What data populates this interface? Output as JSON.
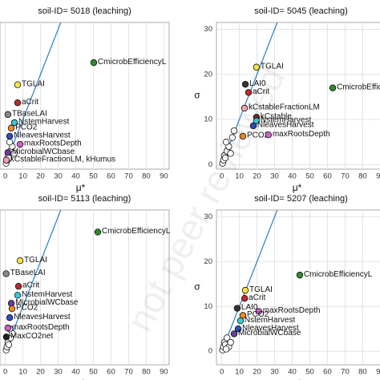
{
  "watermark": "not peer reviewed",
  "chart_data": [
    {
      "type": "scatter",
      "title": "soil-ID= 5018  (leaching)",
      "xlabel": "μ*",
      "xlim": [
        -3,
        93
      ],
      "ylim": [
        -1,
        31.5
      ],
      "xticks": [
        0,
        10,
        20,
        30,
        40,
        50,
        60,
        70,
        80,
        90
      ],
      "grid": true,
      "series": [
        {
          "color": "#ffffff",
          "x": [
            0.5,
            1,
            1.5,
            2,
            3,
            4,
            5,
            2.5
          ],
          "values": [
            0.3,
            1,
            2,
            1.5,
            3,
            4,
            2.5,
            5
          ]
        },
        {
          "name": "CmicrobEfficiencyL",
          "color": "#2e8b2e",
          "x": [
            50.2
          ],
          "values": [
            22.6
          ]
        },
        {
          "name": "TGLAI",
          "color": "#f5e642",
          "x": [
            7
          ],
          "values": [
            17.7
          ]
        },
        {
          "name": "aCrit",
          "color": "#c0282d",
          "x": [
            7
          ],
          "values": [
            13.7
          ]
        },
        {
          "name": "TBaseLAI",
          "color": "#888888",
          "x": [
            1.5
          ],
          "values": [
            11.1
          ]
        },
        {
          "name": "NstemHarvest",
          "color": "#35c8d8",
          "x": [
            5.2
          ],
          "values": [
            9.3
          ]
        },
        {
          "name": "PCO2",
          "color": "#f08a24",
          "x": [
            3.4
          ],
          "values": [
            8.1
          ]
        },
        {
          "name": "NleavesHarvest",
          "color": "#2b4fc0",
          "x": [
            2.5
          ],
          "values": [
            6.3
          ]
        },
        {
          "name": "maxRootsDepth",
          "color": "#d060c8",
          "x": [
            8.4
          ],
          "values": [
            4.5
          ]
        },
        {
          "name": "MicrobialWCbase",
          "color": "#6a3d9a",
          "x": [
            1.5
          ],
          "values": [
            2.7
          ]
        },
        {
          "name": "kCstableFractionLM, kHumus",
          "color": "#f4a0b0",
          "x": [
            0.6
          ],
          "values": [
            1
          ]
        }
      ]
    },
    {
      "type": "scatter",
      "title": "soil-ID= 5045  (leaching)",
      "xlabel": "μ*",
      "ylabel": "σ",
      "xlim": [
        -3,
        93
      ],
      "ylim": [
        -1,
        31.5
      ],
      "xticks": [
        0,
        10,
        20,
        30,
        40,
        50,
        60,
        70,
        80,
        90
      ],
      "yticks": [
        0,
        10,
        20,
        30
      ],
      "grid": true,
      "series": [
        {
          "color": "#ffffff",
          "x": [
            0.5,
            1,
            1.5,
            2,
            3,
            4,
            5,
            2.5,
            6,
            7
          ],
          "values": [
            0.3,
            1,
            2,
            1.5,
            3,
            4,
            2.5,
            5,
            6,
            7.5
          ]
        },
        {
          "name": "CmicrobEfficiencyL",
          "color": "#2e8b2e",
          "x": [
            63
          ],
          "values": [
            17
          ]
        },
        {
          "name": "TGLAI",
          "color": "#f5e642",
          "x": [
            19.7
          ],
          "values": [
            21.6
          ]
        },
        {
          "name": "LAI0",
          "color": "#333333",
          "x": [
            13.4
          ],
          "values": [
            17.8
          ]
        },
        {
          "name": "aCrit",
          "color": "#c0282d",
          "x": [
            15.2
          ],
          "values": [
            16
          ]
        },
        {
          "name": "kCstableFractionLM",
          "color": "#f4a0b0",
          "x": [
            12.9
          ],
          "values": [
            12.5
          ]
        },
        {
          "name": "kCstable",
          "color": "#7b2b1f",
          "x": [
            19.7
          ],
          "values": [
            10.5
          ]
        },
        {
          "name": "NstemHarvest",
          "color": "#35c8d8",
          "x": [
            19.7
          ],
          "values": [
            9.7
          ]
        },
        {
          "name": "NleavesHarvest",
          "color": "#2b4fc0",
          "x": [
            17.9
          ],
          "values": [
            8.6
          ]
        },
        {
          "name": "PCO2",
          "color": "#f08a24",
          "x": [
            12
          ],
          "values": [
            6.3
          ]
        },
        {
          "name": "maxRootsDepth",
          "color": "#d060c8",
          "x": [
            26.5
          ],
          "values": [
            6.6
          ]
        }
      ]
    },
    {
      "type": "scatter",
      "title": "soil-ID= 5113  (leaching)",
      "xlabel": "μ*",
      "xlim": [
        -3,
        93
      ],
      "ylim": [
        -3,
        31.5
      ],
      "xticks": [
        0,
        10,
        20,
        30,
        40,
        50,
        60,
        70,
        80,
        90
      ],
      "grid": true,
      "series": [
        {
          "color": "#ffffff",
          "x": [
            0.5,
            1,
            1.5,
            2,
            3,
            4,
            2.5
          ],
          "values": [
            0.3,
            1,
            2,
            1.5,
            3,
            4,
            5
          ]
        },
        {
          "name": "CmicrobEfficiencyL",
          "color": "#2e8b2e",
          "x": [
            52.5
          ],
          "values": [
            26.6
          ]
        },
        {
          "name": "TGLAI",
          "color": "#f5e642",
          "x": [
            8.4
          ],
          "values": [
            20.2
          ]
        },
        {
          "name": "TBaseLAI",
          "color": "#888888",
          "x": [
            0.5
          ],
          "values": [
            17.3
          ]
        },
        {
          "name": "aCrit",
          "color": "#c0282d",
          "x": [
            7.5
          ],
          "values": [
            14.5
          ]
        },
        {
          "name": "NstemHarvest",
          "color": "#35c8d8",
          "x": [
            7
          ],
          "values": [
            12.5
          ]
        },
        {
          "name": "MicrobialWCbase",
          "color": "#6a3d9a",
          "x": [
            3.4
          ],
          "values": [
            10.7
          ]
        },
        {
          "name": "PCO2",
          "color": "#f08a24",
          "x": [
            3.8
          ],
          "values": [
            9.5
          ]
        },
        {
          "name": "NleavesHarvest",
          "color": "#2b4fc0",
          "x": [
            2.5
          ],
          "values": [
            7.5
          ]
        },
        {
          "name": "maxRootsDepth",
          "color": "#d060c8",
          "x": [
            1.5
          ],
          "values": [
            5.2
          ]
        },
        {
          "name": "MaxCO2net",
          "color": "#222222",
          "x": [
            0.6
          ],
          "values": [
            3.2
          ]
        }
      ]
    },
    {
      "type": "scatter",
      "title": "soil-ID= 5207  (leaching)",
      "xlabel": "μ*",
      "ylabel": "σ",
      "xlim": [
        -3,
        93
      ],
      "ylim": [
        -3,
        31.5
      ],
      "xticks": [
        0,
        10,
        20,
        30,
        40,
        50,
        60,
        70,
        80,
        90
      ],
      "yticks": [
        0,
        10,
        20,
        30
      ],
      "grid": true,
      "series": [
        {
          "color": "#ffffff",
          "x": [
            0.5,
            1,
            1.5,
            2,
            3,
            4,
            2.5,
            5
          ],
          "values": [
            0.3,
            1,
            2,
            1.5,
            3,
            1,
            0.5,
            2
          ]
        },
        {
          "name": "CmicrobEfficiencyL",
          "color": "#2e8b2e",
          "x": [
            44.3
          ],
          "values": [
            17
          ]
        },
        {
          "name": "TGLAI",
          "color": "#f5e642",
          "x": [
            13.4
          ],
          "values": [
            13.6
          ]
        },
        {
          "name": "aCrit",
          "color": "#c0282d",
          "x": [
            13
          ],
          "values": [
            11.8
          ]
        },
        {
          "name": "LAI0",
          "color": "#333333",
          "x": [
            8.8
          ],
          "values": [
            9.6
          ]
        },
        {
          "name": "maxRootsDepth",
          "color": "#d060c8",
          "x": [
            21
          ],
          "values": [
            8.9
          ]
        },
        {
          "name": "PCO2",
          "color": "#f08a24",
          "x": [
            12
          ],
          "values": [
            8
          ]
        },
        {
          "name": "NstemHarvest",
          "color": "#35c8d8",
          "x": [
            10.6
          ],
          "values": [
            6.8
          ]
        },
        {
          "name": "NleavesHarvest",
          "color": "#2b4fc0",
          "x": [
            9.3
          ],
          "values": [
            5
          ]
        },
        {
          "name": "MicrobialWCbase",
          "color": "#6a3d9a",
          "x": [
            7
          ],
          "values": [
            3.9
          ]
        }
      ]
    }
  ]
}
